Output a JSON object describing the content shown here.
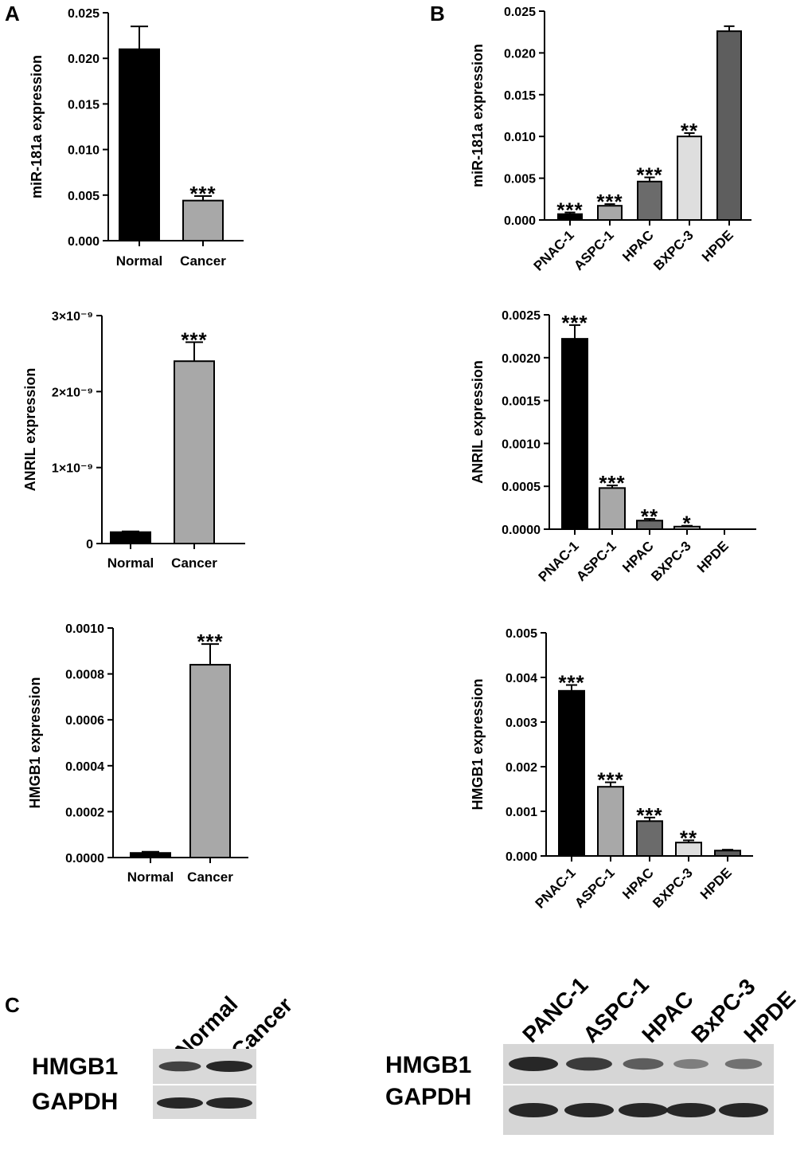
{
  "panels": {
    "a": "A",
    "b": "B",
    "c": "C"
  },
  "colors": {
    "black": "#000000",
    "gray": "#a8a8a8",
    "dark_gray": "#6b6b6b",
    "light_gray": "#dedede",
    "mid_gray": "#5e5e5e"
  },
  "chart_data": [
    {
      "id": "a1",
      "type": "bar",
      "panel": "A",
      "ylabel": "miR-181a expression",
      "categories": [
        "Normal",
        "Cancer"
      ],
      "values": [
        0.021,
        0.0044
      ],
      "errors": [
        0.0025,
        0.0005
      ],
      "significance": [
        "",
        "***"
      ],
      "bar_colors": [
        "black",
        "gray"
      ],
      "ylim": [
        0,
        0.025
      ],
      "ticks": [
        0,
        0.005,
        0.01,
        0.015,
        0.02,
        0.025
      ],
      "tick_labels": [
        "0.000",
        "0.005",
        "0.010",
        "0.015",
        "0.020",
        "0.025"
      ]
    },
    {
      "id": "a2",
      "type": "bar",
      "panel": "A",
      "ylabel": "ANRIL expression",
      "categories": [
        "Normal",
        "Cancer"
      ],
      "values": [
        1.5e-10,
        2.4e-09
      ],
      "errors": [
        1e-11,
        2.5e-10
      ],
      "significance": [
        "",
        "***"
      ],
      "bar_colors": [
        "black",
        "gray"
      ],
      "ylim": [
        0,
        3e-09
      ],
      "ticks": [
        0,
        1e-09,
        2e-09,
        3e-09
      ],
      "tick_labels": [
        "0",
        "1×10⁻⁹",
        "2×10⁻⁹",
        "3×10⁻⁹"
      ]
    },
    {
      "id": "a3",
      "type": "bar",
      "panel": "A",
      "ylabel": "HMGB1 expression",
      "categories": [
        "Normal",
        "Cancer"
      ],
      "values": [
        2e-05,
        0.00084
      ],
      "errors": [
        5e-06,
        9e-05
      ],
      "significance": [
        "",
        "***"
      ],
      "bar_colors": [
        "black",
        "gray"
      ],
      "ylim": [
        0,
        0.001
      ],
      "ticks": [
        0,
        0.0002,
        0.0004,
        0.0006,
        0.0008,
        0.001
      ],
      "tick_labels": [
        "0.0000",
        "0.0002",
        "0.0004",
        "0.0006",
        "0.0008",
        "0.0010"
      ]
    },
    {
      "id": "b1",
      "type": "bar",
      "panel": "B",
      "ylabel": "miR-181a expression",
      "categories": [
        "PNAC-1",
        "ASPC-1",
        "HPAC",
        "BXPC-3",
        "HPDE"
      ],
      "values": [
        0.0007,
        0.0017,
        0.0046,
        0.01,
        0.0226
      ],
      "errors": [
        0.0002,
        0.0002,
        0.0005,
        0.0004,
        0.0006
      ],
      "significance": [
        "***",
        "***",
        "***",
        "**",
        ""
      ],
      "bar_colors": [
        "black",
        "gray",
        "dark_gray",
        "light_gray",
        "mid_gray"
      ],
      "ylim": [
        0,
        0.025
      ],
      "ticks": [
        0,
        0.005,
        0.01,
        0.015,
        0.02,
        0.025
      ],
      "tick_labels": [
        "0.000",
        "0.005",
        "0.010",
        "0.015",
        "0.020",
        "0.025"
      ]
    },
    {
      "id": "b2",
      "type": "bar",
      "panel": "B",
      "ylabel": "ANRIL expression",
      "categories": [
        "PNAC-1",
        "ASPC-1",
        "HPAC",
        "BXPC-3",
        "HPDE"
      ],
      "values": [
        0.00222,
        0.00048,
        0.0001,
        3e-05,
        0.0
      ],
      "errors": [
        0.00016,
        3e-05,
        2e-05,
        1e-05,
        0.0
      ],
      "significance": [
        "***",
        "***",
        "**",
        "*",
        ""
      ],
      "bar_colors": [
        "black",
        "gray",
        "dark_gray",
        "light_gray",
        "mid_gray"
      ],
      "ylim": [
        0,
        0.0025
      ],
      "ticks": [
        0,
        0.0005,
        0.001,
        0.0015,
        0.002,
        0.0025
      ],
      "tick_labels": [
        "0.0000",
        "0.0005",
        "0.0010",
        "0.0015",
        "0.0020",
        "0.0025"
      ]
    },
    {
      "id": "b3",
      "type": "bar",
      "panel": "B",
      "ylabel": "HMGB1 expression",
      "categories": [
        "PNAC-1",
        "ASPC-1",
        "HPAC",
        "BXPC-3",
        "HPDE"
      ],
      "values": [
        0.0037,
        0.00155,
        0.00078,
        0.0003,
        0.00012
      ],
      "errors": [
        0.00013,
        0.0001,
        8e-05,
        5e-05,
        2e-05
      ],
      "significance": [
        "***",
        "***",
        "***",
        "**",
        ""
      ],
      "bar_colors": [
        "black",
        "gray",
        "dark_gray",
        "light_gray",
        "mid_gray"
      ],
      "ylim": [
        0,
        0.005
      ],
      "ticks": [
        0,
        0.001,
        0.002,
        0.003,
        0.004,
        0.005
      ],
      "tick_labels": [
        "0.000",
        "0.001",
        "0.002",
        "0.003",
        "0.004",
        "0.005"
      ]
    }
  ],
  "western_blot": {
    "tissue": {
      "lanes": [
        "Normal",
        "Cancer"
      ],
      "rows": [
        "HMGB1",
        "GAPDH"
      ],
      "band_intensity": {
        "HMGB1": [
          0.8,
          1.0
        ],
        "GAPDH": [
          1.0,
          1.0
        ]
      }
    },
    "cell_lines": {
      "lanes": [
        "PANC-1",
        "ASPC-1",
        "HPAC",
        "BxPC-3",
        "HPDE"
      ],
      "rows": [
        "HMGB1",
        "GAPDH"
      ],
      "band_intensity": {
        "HMGB1": [
          1.0,
          0.85,
          0.6,
          0.35,
          0.45
        ],
        "GAPDH": [
          1.0,
          1.0,
          1.0,
          1.0,
          1.0
        ]
      }
    }
  }
}
